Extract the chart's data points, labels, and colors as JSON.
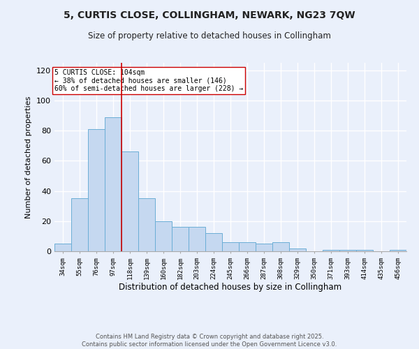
{
  "title1": "5, CURTIS CLOSE, COLLINGHAM, NEWARK, NG23 7QW",
  "title2": "Size of property relative to detached houses in Collingham",
  "xlabel": "Distribution of detached houses by size in Collingham",
  "ylabel": "Number of detached properties",
  "categories": [
    "34sqm",
    "55sqm",
    "76sqm",
    "97sqm",
    "118sqm",
    "139sqm",
    "160sqm",
    "182sqm",
    "203sqm",
    "224sqm",
    "245sqm",
    "266sqm",
    "287sqm",
    "308sqm",
    "329sqm",
    "350sqm",
    "371sqm",
    "393sqm",
    "414sqm",
    "435sqm",
    "456sqm"
  ],
  "values": [
    5,
    35,
    81,
    89,
    66,
    35,
    20,
    16,
    16,
    12,
    6,
    6,
    5,
    6,
    2,
    0,
    1,
    1,
    1,
    0,
    1
  ],
  "bar_color": "#c5d8f0",
  "bar_edge_color": "#6baed6",
  "property_line_x": 3.5,
  "property_line_color": "#cc0000",
  "annotation_text": "5 CURTIS CLOSE: 104sqm\n← 38% of detached houses are smaller (146)\n60% of semi-detached houses are larger (228) →",
  "annotation_box_color": "#ffffff",
  "annotation_box_edge": "#cc0000",
  "ylim": [
    0,
    125
  ],
  "yticks": [
    0,
    20,
    40,
    60,
    80,
    100,
    120
  ],
  "bg_color": "#eaf0fb",
  "grid_color": "#ffffff",
  "footer1": "Contains HM Land Registry data © Crown copyright and database right 2025.",
  "footer2": "Contains public sector information licensed under the Open Government Licence v3.0."
}
